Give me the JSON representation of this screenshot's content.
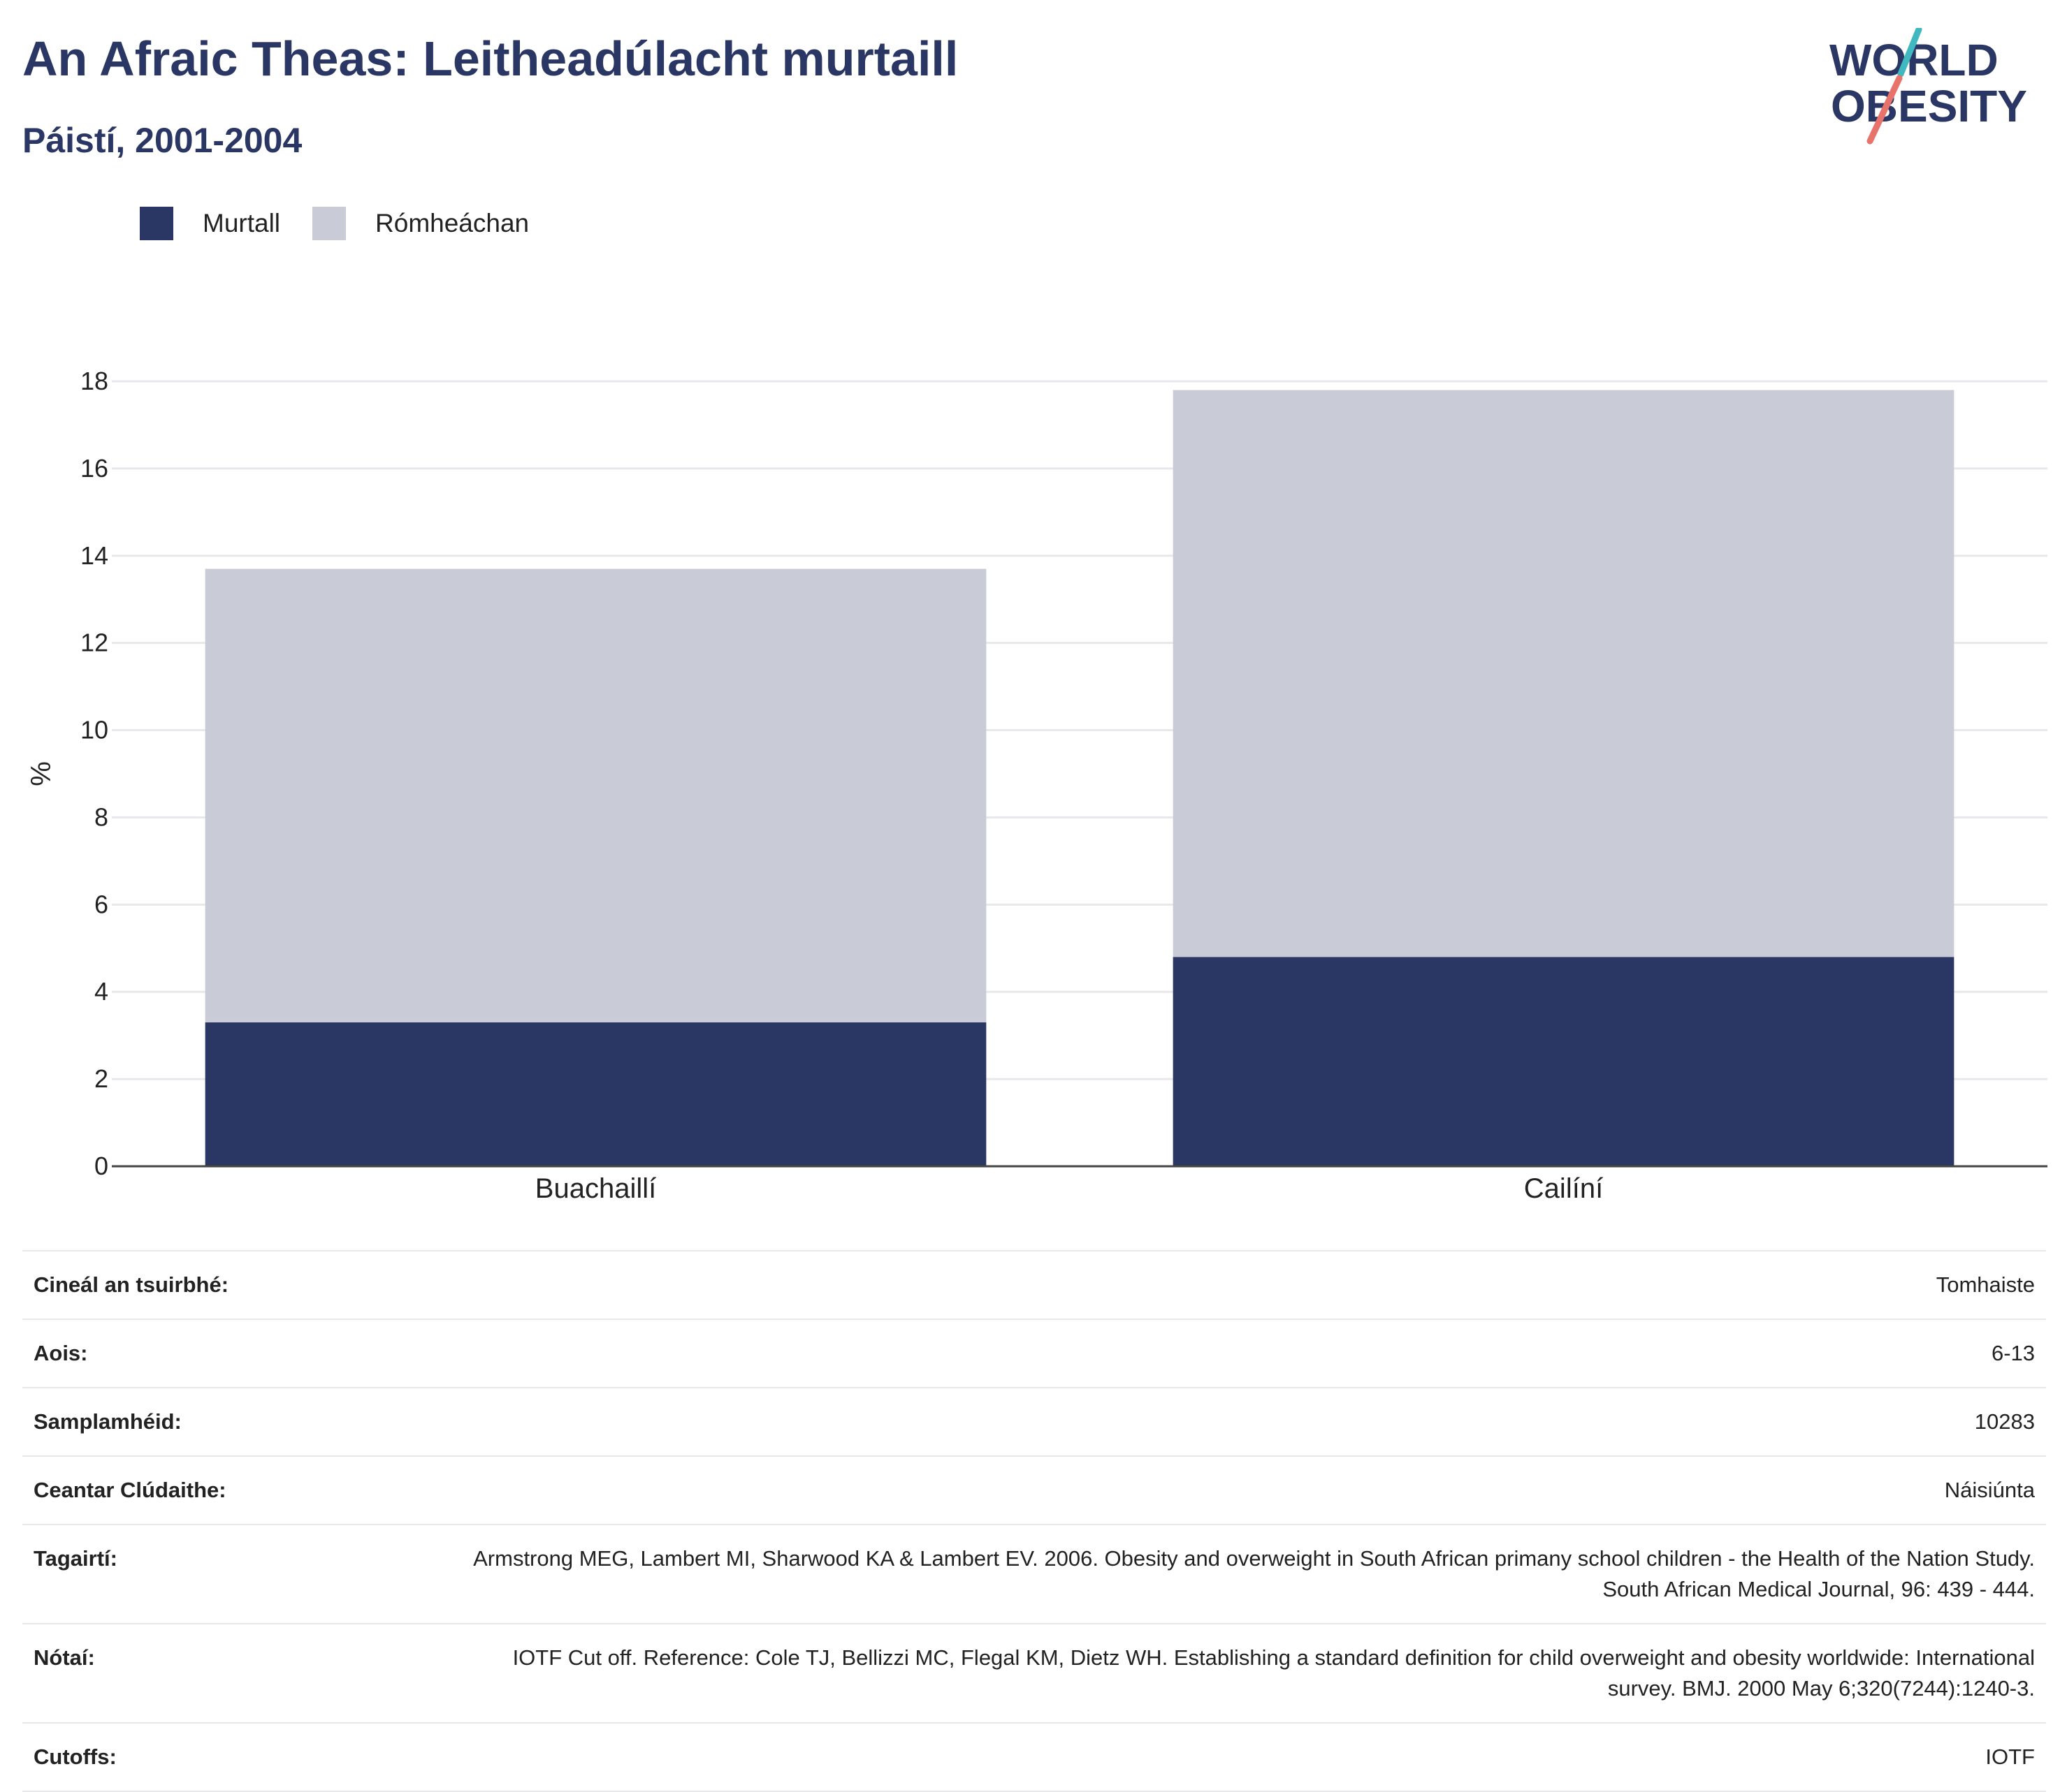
{
  "header": {
    "title": "An Afraic Theas: Leitheadúlacht murtaill",
    "subtitle": "Páistí, 2001-2004"
  },
  "logo": {
    "line1": "WORLD",
    "line2": "OBESITY"
  },
  "colors": {
    "obese": "#2a3764",
    "overweight": "#c9cbd6",
    "title": "#2a3764",
    "grid": "#e8e8ec",
    "logo_teal": "#3fb8c0",
    "logo_red": "#e8736a"
  },
  "legend": [
    {
      "label": "Murtall",
      "color": "#2a3764"
    },
    {
      "label": "Rómheáchan",
      "color": "#c9cbd6"
    }
  ],
  "chart_data": {
    "type": "bar",
    "stacked": true,
    "categories": [
      "Buachaillí",
      "Cailíní"
    ],
    "series": [
      {
        "name": "Murtall",
        "values": [
          3.3,
          4.8
        ]
      },
      {
        "name": "Rómheáchan",
        "values": [
          10.4,
          13.0
        ]
      }
    ],
    "title": "An Afraic Theas: Leitheadúlacht murtaill",
    "subtitle": "Páistí, 2001-2004",
    "xlabel": "",
    "ylabel": "%",
    "ylim": [
      0,
      18
    ],
    "yticks": [
      "0",
      "2",
      "4",
      "6",
      "8",
      "10",
      "12",
      "14",
      "16",
      "18"
    ],
    "grid": true,
    "legend_position": "top-left"
  },
  "meta": [
    {
      "key": "Cineál an tsuirbhé:",
      "value": "Tomhaiste"
    },
    {
      "key": "Aois:",
      "value": "6-13"
    },
    {
      "key": "Samplamhéid:",
      "value": "10283"
    },
    {
      "key": "Ceantar Clúdaithe:",
      "value": "Náisiúnta"
    },
    {
      "key": "Tagairtí:",
      "value": "Armstrong MEG, Lambert MI, Sharwood KA & Lambert EV. 2006. Obesity and overweight in South African primany school children - the Health of the Nation Study. South African Medical Journal, 96: 439 - 444."
    },
    {
      "key": "Nótaí:",
      "value": "IOTF Cut off. Reference: Cole TJ, Bellizzi MC, Flegal KM, Dietz WH. Establishing a standard definition for child overweight and obesity worldwide: International survey. BMJ. 2000 May 6;320(7244):1240-3."
    },
    {
      "key": "Cutoffs:",
      "value": "IOTF"
    }
  ]
}
